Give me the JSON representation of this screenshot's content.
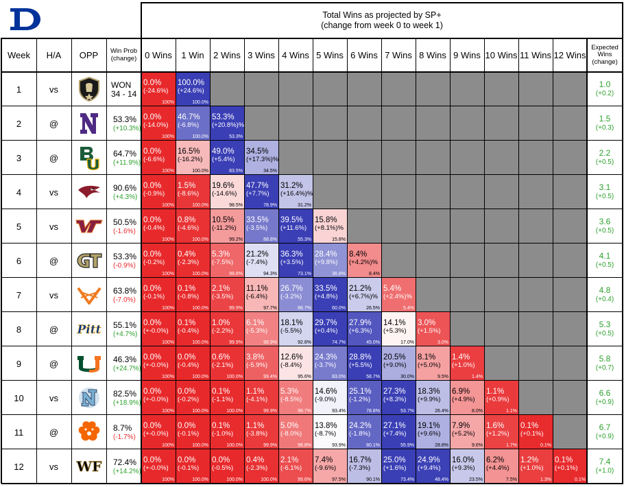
{
  "header": {
    "title_line1": "Total Wins as projected by SP+",
    "title_line2": "(change from week 0 to week 1)"
  },
  "columns": {
    "week": "Week",
    "ha": "H/A",
    "opp": "OPP",
    "win_prob": [
      "Win Prob",
      "(change)"
    ],
    "wins": [
      "0 Wins",
      "1 Win",
      "2 Wins",
      "3 Wins",
      "4 Wins",
      "5 Wins",
      "6 Wins",
      "7 Wins",
      "8 Wins",
      "9 Wins",
      "10 Wins",
      "11 Wins",
      "12 Wins"
    ],
    "expected": [
      "Expected",
      "Wins",
      "(change)"
    ]
  },
  "colors": {
    "high": "#3a3fb5",
    "mid": "#ffffff",
    "low": "#e8292b",
    "grey": "#8c8c8c",
    "positive_change": "#2ca02c",
    "negative_change": "#e8292b",
    "brand_duke": "#00339a"
  },
  "chart_data": {
    "type": "table",
    "title": "Total Wins as projected by SP+ (change from week 0 to week 1)",
    "rows": [
      {
        "week": "1",
        "ha": "vs",
        "opp_icon": "army-logo-icon",
        "win_prob": "WON",
        "win_prob_change": "34 - 14",
        "change_sign": "neutral",
        "cells": [
          [
            "0.0%",
            "(-24.6%)",
            "100%"
          ],
          [
            "100.0%",
            "(+24.6%)",
            "100.0%"
          ]
        ],
        "expected": "1.0",
        "expected_change": "(+0.2)"
      },
      {
        "week": "2",
        "ha": "@",
        "opp_icon": "northwestern-logo-icon",
        "win_prob": "53.3%",
        "win_prob_change": "(+10.3%)",
        "change_sign": "pos",
        "cells": [
          [
            "0.0%",
            "(-14.0%)",
            "100%"
          ],
          [
            "46.7%",
            "(-6.8%)",
            "100.0%"
          ],
          [
            "53.3%",
            "(+20.8%)%",
            "53.3%"
          ]
        ],
        "expected": "1.5",
        "expected_change": "(+0.3)"
      },
      {
        "week": "3",
        "ha": "@",
        "opp_icon": "baylor-logo-icon",
        "win_prob": "64.7%",
        "win_prob_change": "(+11.9%)",
        "change_sign": "pos",
        "cells": [
          [
            "0.0%",
            "(-6.6%)",
            "100%"
          ],
          [
            "16.5%",
            "(-16.2%)",
            "100.0%"
          ],
          [
            "49.0%",
            "(+5.4%)",
            "83.5%"
          ],
          [
            "34.5%",
            "(+17.3%)%",
            "34.5%"
          ]
        ],
        "expected": "2.2",
        "expected_change": "(+0.5)"
      },
      {
        "week": "4",
        "ha": "vs",
        "opp_icon": "north-carolina-central-logo-icon",
        "win_prob": "90.6%",
        "win_prob_change": "(+4.3%)",
        "change_sign": "pos",
        "cells": [
          [
            "0.0%",
            "(-0.9%)",
            "100%"
          ],
          [
            "1.5%",
            "(-8.6%)",
            "100.0%"
          ],
          [
            "19.6%",
            "(-14.6%)",
            "98.5%"
          ],
          [
            "47.7%",
            "(+7.7%)",
            "78.9%"
          ],
          [
            "31.2%",
            "(+16.4%)%",
            "31.2%"
          ]
        ],
        "expected": "3.1",
        "expected_change": "(+0.5)"
      },
      {
        "week": "5",
        "ha": "vs",
        "opp_icon": "virginia-tech-logo-icon",
        "win_prob": "50.5%",
        "win_prob_change": "(-1.6%)",
        "change_sign": "neg",
        "cells": [
          [
            "0.0%",
            "(-0.4%)",
            "100%"
          ],
          [
            "0.8%",
            "(-4.6%)",
            "100.0%"
          ],
          [
            "10.5%",
            "(-11.2%)",
            "99.2%"
          ],
          [
            "33.5%",
            "(-3.5%)",
            "88.8%"
          ],
          [
            "39.5%",
            "(+11.6%)",
            "55.3%"
          ],
          [
            "15.8%",
            "(+8.1%)%",
            "15.8%"
          ]
        ],
        "expected": "3.6",
        "expected_change": "(+0.5)"
      },
      {
        "week": "6",
        "ha": "@",
        "opp_icon": "georgia-tech-logo-icon",
        "win_prob": "53.3%",
        "win_prob_change": "(-0.9%)",
        "change_sign": "neg",
        "cells": [
          [
            "0.0%",
            "(-0.2%)",
            "100%"
          ],
          [
            "0.4%",
            "(-2.3%)",
            "100.0%"
          ],
          [
            "5.3%",
            "(-7.5%)",
            "99.6%"
          ],
          [
            "21.2%",
            "(-7.4%)",
            "94.3%"
          ],
          [
            "36.3%",
            "(+3.5%)",
            "73.1%"
          ],
          [
            "28.4%",
            "(+9.8%)",
            "36.8%"
          ],
          [
            "8.4%",
            "(+4.2%)%",
            "8.4%"
          ]
        ],
        "expected": "4.1",
        "expected_change": "(+0.5)"
      },
      {
        "week": "7",
        "ha": "vs",
        "opp_icon": "virginia-logo-icon",
        "win_prob": "63.8%",
        "win_prob_change": "(-7.0%)",
        "change_sign": "neg",
        "cells": [
          [
            "0.0%",
            "(-0.1%)",
            "100%"
          ],
          [
            "0.1%",
            "(-0.8%)",
            "100.0%"
          ],
          [
            "2.1%",
            "(-3.5%)",
            "99.9%"
          ],
          [
            "11.1%",
            "(-6.4%)",
            "97.7%"
          ],
          [
            "26.7%",
            "(-3.2%)",
            "86.7%"
          ],
          [
            "33.5%",
            "(+4.8%)",
            "60.0%"
          ],
          [
            "21.2%",
            "(+6.7%)%",
            "26.5%"
          ],
          [
            "5.4%",
            "(+2.4%)%",
            "5.4%"
          ]
        ],
        "expected": "4.8",
        "expected_change": "(+0.4)"
      },
      {
        "week": "8",
        "ha": "@",
        "opp_icon": "pitt-logo-icon",
        "win_prob": "55.1%",
        "win_prob_change": "(+4.7%)",
        "change_sign": "pos",
        "cells": [
          [
            "0.0%",
            "(+-0.0%)",
            "100%"
          ],
          [
            "0.1%",
            "(-0.4%)",
            "100.0%"
          ],
          [
            "1.0%",
            "(-2.2%)",
            "99.9%"
          ],
          [
            "6.1%",
            "(-5.3%)",
            "98.9%"
          ],
          [
            "18.1%",
            "(-5.5%)",
            "92.8%"
          ],
          [
            "29.7%",
            "(+0.4%)",
            "74.7%"
          ],
          [
            "27.9%",
            "(+6.3%)",
            "45.0%"
          ],
          [
            "14.1%",
            "(+5.3%)",
            "17.0%"
          ],
          [
            "3.0%",
            "(+1.5%)",
            "3.0%"
          ]
        ],
        "expected": "5.3",
        "expected_change": "(+0.5)"
      },
      {
        "week": "9",
        "ha": "@",
        "opp_icon": "miami-logo-icon",
        "win_prob": "46.3%",
        "win_prob_change": "(+24.7%)",
        "change_sign": "pos",
        "cells": [
          [
            "0.0%",
            "(+-0.0%)",
            "100%"
          ],
          [
            "0.0%",
            "(-0.4%)",
            "100.0%"
          ],
          [
            "0.6%",
            "(-2.1%)",
            "100.0%"
          ],
          [
            "3.8%",
            "(-5.9%)",
            "99.4%"
          ],
          [
            "12.6%",
            "(-8.4%)",
            "95.6%"
          ],
          [
            "24.3%",
            "(-3.7%)",
            "83.0%"
          ],
          [
            "28.8%",
            "(+5.5%)",
            "58.7%"
          ],
          [
            "20.5%",
            "(+9.0%)",
            "30.0%"
          ],
          [
            "8.1%",
            "(+5.0%)",
            "9.5%"
          ],
          [
            "1.4%",
            "(+1.0%)",
            "1.4%"
          ]
        ],
        "expected": "5.8",
        "expected_change": "(+0.7)"
      },
      {
        "week": "10",
        "ha": "vs",
        "opp_icon": "unc-logo-icon",
        "win_prob": "82.5%",
        "win_prob_change": "(+18.9%)",
        "change_sign": "pos",
        "cells": [
          [
            "0.0%",
            "(+-0.0%)",
            "100%"
          ],
          [
            "0.0%",
            "(-0.2%)",
            "100.0%"
          ],
          [
            "0.1%",
            "(-1.1%)",
            "100.0%"
          ],
          [
            "1.1%",
            "(-4.1%)",
            "99.9%"
          ],
          [
            "5.3%",
            "(-8.5%)",
            "98.7%"
          ],
          [
            "14.6%",
            "(-9.0%)",
            "93.4%"
          ],
          [
            "25.1%",
            "(-1.2%)",
            "78.8%"
          ],
          [
            "27.3%",
            "(+8.3%)",
            "53.7%"
          ],
          [
            "18.3%",
            "(+9.9%)",
            "26.4%"
          ],
          [
            "6.9%",
            "(+4.9%)",
            "8.0%"
          ],
          [
            "1.1%",
            "(+0.9%)",
            "1.1%"
          ]
        ],
        "expected": "6.6",
        "expected_change": "(+0.9)"
      },
      {
        "week": "11",
        "ha": "@",
        "opp_icon": "clemson-logo-icon",
        "win_prob": "8.7%",
        "win_prob_change": "(-1.7%)",
        "change_sign": "neg",
        "cells": [
          [
            "0.0%",
            "(+-0.0%)",
            "100%"
          ],
          [
            "0.0%",
            "(-0.1%)",
            "100.0%"
          ],
          [
            "0.1%",
            "(-1.0%)",
            "100.0%"
          ],
          [
            "1.1%",
            "(-3.8%)",
            "99.9%"
          ],
          [
            "5.0%",
            "(-8.0%)",
            "98.8%"
          ],
          [
            "13.8%",
            "(-8.7%)",
            "93.9%"
          ],
          [
            "24.2%",
            "(-1.8%)",
            "80.1%"
          ],
          [
            "27.1%",
            "(+7.4%)",
            "55.9%"
          ],
          [
            "19.1%",
            "(+9.6%)",
            "28.8%"
          ],
          [
            "7.9%",
            "(+5.2%)",
            "9.6%"
          ],
          [
            "1.6%",
            "(+1.2%)",
            "1.7%"
          ],
          [
            "0.1%",
            "(+0.1%)",
            "0.1%"
          ]
        ],
        "expected": "6.7",
        "expected_change": "(+0.9)"
      },
      {
        "week": "12",
        "ha": "vs",
        "opp_icon": "wake-forest-logo-icon",
        "win_prob": "72.4%",
        "win_prob_change": "(+14.2%)",
        "change_sign": "pos",
        "cells": [
          [
            "0.0%",
            "(+-0.0%)",
            "100%"
          ],
          [
            "0.0%",
            "(-0.1%)",
            "100.0%"
          ],
          [
            "0.0%",
            "(-0.5%)",
            "100.0%"
          ],
          [
            "0.4%",
            "(-2.3%)",
            "100.0%"
          ],
          [
            "2.1%",
            "(-6.1%)",
            "99.6%"
          ],
          [
            "7.4%",
            "(-9.6%)",
            "97.5%"
          ],
          [
            "16.7%",
            "(-7.3%)",
            "90.1%"
          ],
          [
            "25.0%",
            "(+1.6%)",
            "73.4%"
          ],
          [
            "24.9%",
            "(+9.4%)",
            "48.4%"
          ],
          [
            "16.0%",
            "(+9.3%)",
            "23.5%"
          ],
          [
            "6.2%",
            "(+4.4%)",
            "7.5%"
          ],
          [
            "1.2%",
            "(+1.0%)",
            "1.3%"
          ],
          [
            "0.1%",
            "(+0.1%)",
            "0.1%"
          ]
        ],
        "expected": "7.4",
        "expected_change": "(+1.0)"
      }
    ]
  }
}
